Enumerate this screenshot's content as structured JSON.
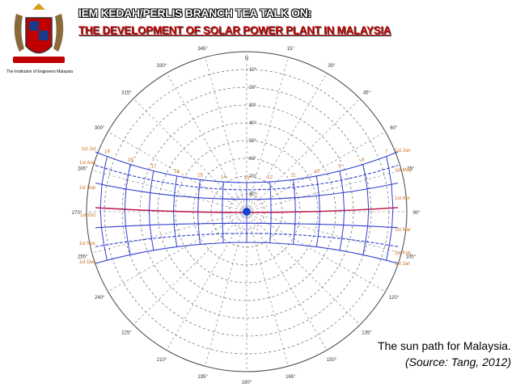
{
  "header": {
    "title": "IEM KEDAH/PERLIS BRANCH TEA TALK ON:",
    "subtitle": "THE DEVELOPMENT OF SOLAR POWER PLANT IN MALAYSIA",
    "logo_caption": "The Institution of Engineers Malaysia"
  },
  "diagram": {
    "azimuth_labels": [
      "N",
      "15°",
      "30°",
      "45°",
      "60°",
      "75°",
      "90°",
      "105°",
      "120°",
      "135°",
      "150°",
      "165°",
      "180°",
      "195°",
      "210°",
      "225°",
      "240°",
      "255°",
      "270°",
      "285°",
      "300°",
      "315°",
      "330°",
      "345°"
    ],
    "altitude_labels": [
      "10°",
      "20°",
      "30°",
      "40°",
      "50°",
      "60°",
      "70°",
      "80°"
    ],
    "date_labels_left": [
      "1st Jul",
      "1st Aug",
      "1st Sep",
      "1st Oct",
      "1st Nov",
      "1st Dec"
    ],
    "date_labels_right": [
      "1st Jun",
      "1st May",
      "1st Apr",
      "1st Mar",
      "1st Feb",
      "1st Jan"
    ],
    "hour_labels": [
      "19",
      "18",
      "17",
      "16",
      "15",
      "14",
      "13",
      "12",
      "11",
      "10",
      "9",
      "8",
      "7"
    ]
  },
  "caption": {
    "text": "The sun path for Malaysia.",
    "source": "(Source: Tang, 2012)"
  }
}
